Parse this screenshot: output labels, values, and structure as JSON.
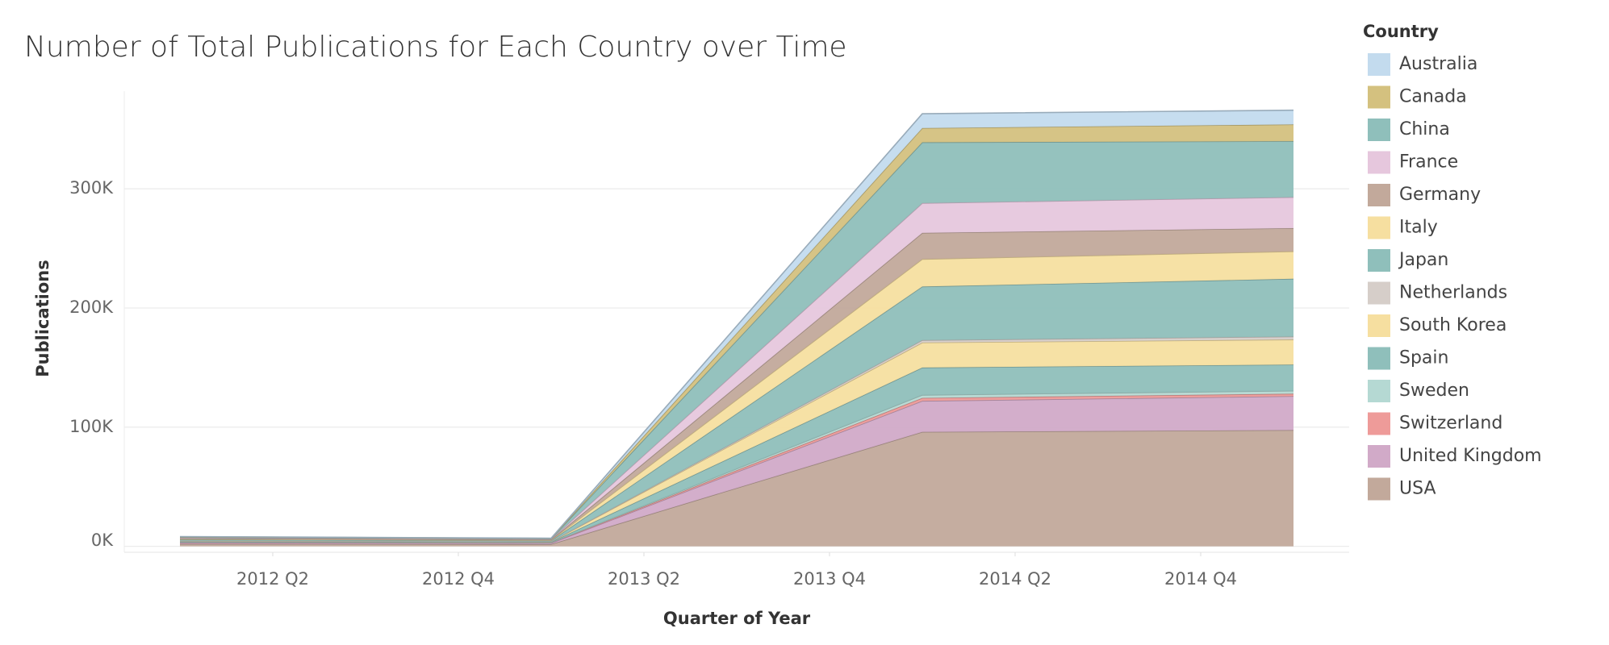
{
  "chart_data": {
    "type": "stacked_area",
    "title": "Number of Total Publications for Each Country over Time",
    "x_label": "Quarter of Year",
    "y_label": "Publications",
    "legend_title": "Country",
    "legend": "right",
    "grid": true,
    "x": [
      2012,
      2013,
      2014,
      2015
    ],
    "xlim": [
      2011.85,
      2015.15
    ],
    "xticks": [
      {
        "value": 2012.25,
        "label": "2012 Q2"
      },
      {
        "value": 2012.75,
        "label": "2012 Q4"
      },
      {
        "value": 2013.25,
        "label": "2013 Q2"
      },
      {
        "value": 2013.75,
        "label": "2013 Q4"
      },
      {
        "value": 2014.25,
        "label": "2014 Q2"
      },
      {
        "value": 2014.75,
        "label": "2014 Q4"
      }
    ],
    "ylim": [
      -5000,
      382000
    ],
    "yticks": [
      {
        "value": 0,
        "label": "0K"
      },
      {
        "value": 100000,
        "label": "100K"
      },
      {
        "value": 200000,
        "label": "200K"
      },
      {
        "value": 300000,
        "label": "300K"
      }
    ],
    "series": [
      {
        "name": "Australia",
        "color": "#c3dbee",
        "values": [
          200,
          150,
          12000,
          12000
        ]
      },
      {
        "name": "Canada",
        "color": "#d4c17f",
        "values": [
          300,
          200,
          12000,
          14000
        ]
      },
      {
        "name": "China",
        "color": "#8fbfbb",
        "values": [
          500,
          400,
          51000,
          47000
        ]
      },
      {
        "name": "France",
        "color": "#e6c7dd",
        "values": [
          500,
          400,
          25000,
          26000
        ]
      },
      {
        "name": "Germany",
        "color": "#c2a99b",
        "values": [
          600,
          500,
          22000,
          19500
        ]
      },
      {
        "name": "Italy",
        "color": "#f6dfa0",
        "values": [
          400,
          300,
          23000,
          23000
        ]
      },
      {
        "name": "Japan",
        "color": "#8fbfbb",
        "values": [
          1000,
          800,
          45000,
          48500
        ]
      },
      {
        "name": "Netherlands",
        "color": "#d6cec9",
        "values": [
          200,
          150,
          2000,
          2500
        ]
      },
      {
        "name": "South Korea",
        "color": "#f6dfa0",
        "values": [
          300,
          250,
          21000,
          21000
        ]
      },
      {
        "name": "Spain",
        "color": "#8fbfbb",
        "values": [
          500,
          400,
          23000,
          22000
        ]
      },
      {
        "name": "Sweden",
        "color": "#b5d9d3",
        "values": [
          200,
          150,
          2500,
          2500
        ]
      },
      {
        "name": "Switzerland",
        "color": "#ee9b99",
        "values": [
          500,
          400,
          2500,
          2000
        ]
      },
      {
        "name": "United Kingdom",
        "color": "#d1aac8",
        "values": [
          1000,
          900,
          26000,
          28500
        ]
      },
      {
        "name": "USA",
        "color": "#c2a99b",
        "values": [
          2000,
          1800,
          96000,
          97500
        ]
      }
    ]
  }
}
